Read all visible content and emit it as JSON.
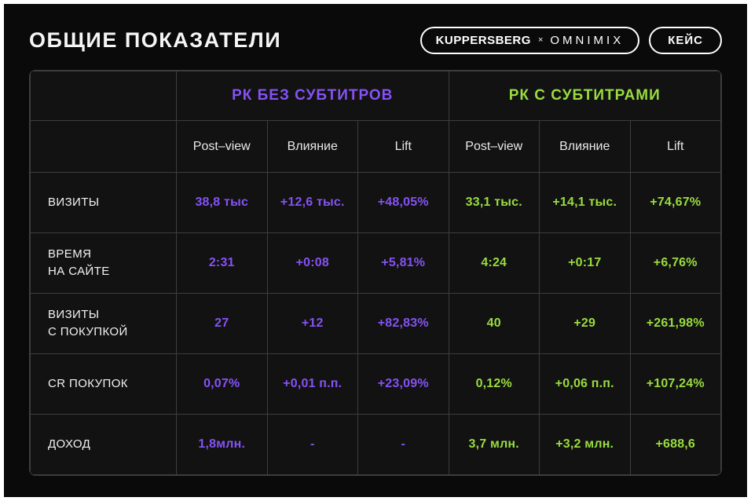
{
  "header": {
    "title": "ОБЩИЕ ПОКАЗАТЕЛИ",
    "brand": "KUPPERSBERG",
    "separator": "×",
    "partner": "OMNIMIX",
    "case_label": "КЕЙС"
  },
  "colors": {
    "background": "#0a0a0a",
    "table_background": "#121212",
    "grid": "#3d3d3d",
    "purple": "#8552f5",
    "green": "#99dc3e",
    "text": "#f2f2f2"
  },
  "chart_data": {
    "type": "table",
    "title": "ОБЩИЕ ПОКАЗАТЕЛИ",
    "column_groups": [
      {
        "label": "РК БЕЗ СУБТИТРОВ",
        "color": "#8552f5"
      },
      {
        "label": "РК С СУБТИТРАМИ",
        "color": "#99dc3e"
      }
    ],
    "subheaders": [
      "Post–view",
      "Влияние",
      "Lift",
      "Post–view",
      "Влияние",
      "Lift"
    ],
    "rows": [
      {
        "label": "ВИЗИТЫ",
        "cells": [
          "38,8 тыс",
          "+12,6 тыс.",
          "+48,05%",
          "33,1 тыс.",
          "+14,1 тыс.",
          "+74,67%"
        ]
      },
      {
        "label": "ВРЕМЯ\nНА САЙТЕ",
        "cells": [
          "2:31",
          "+0:08",
          "+5,81%",
          "4:24",
          "+0:17",
          "+6,76%"
        ]
      },
      {
        "label": "ВИЗИТЫ\nС ПОКУПКОЙ",
        "cells": [
          "27",
          "+12",
          "+82,83%",
          "40",
          "+29",
          "+261,98%"
        ]
      },
      {
        "label": "CR ПОКУПОК",
        "cells": [
          "0,07%",
          "+0,01 п.п.",
          "+23,09%",
          "0,12%",
          "+0,06 п.п.",
          "+107,24%"
        ]
      },
      {
        "label": "ДОХОД",
        "cells": [
          "1,8млн.",
          "-",
          "-",
          "3,7 млн.",
          "+3,2 млн.",
          "+688,6"
        ]
      }
    ]
  }
}
